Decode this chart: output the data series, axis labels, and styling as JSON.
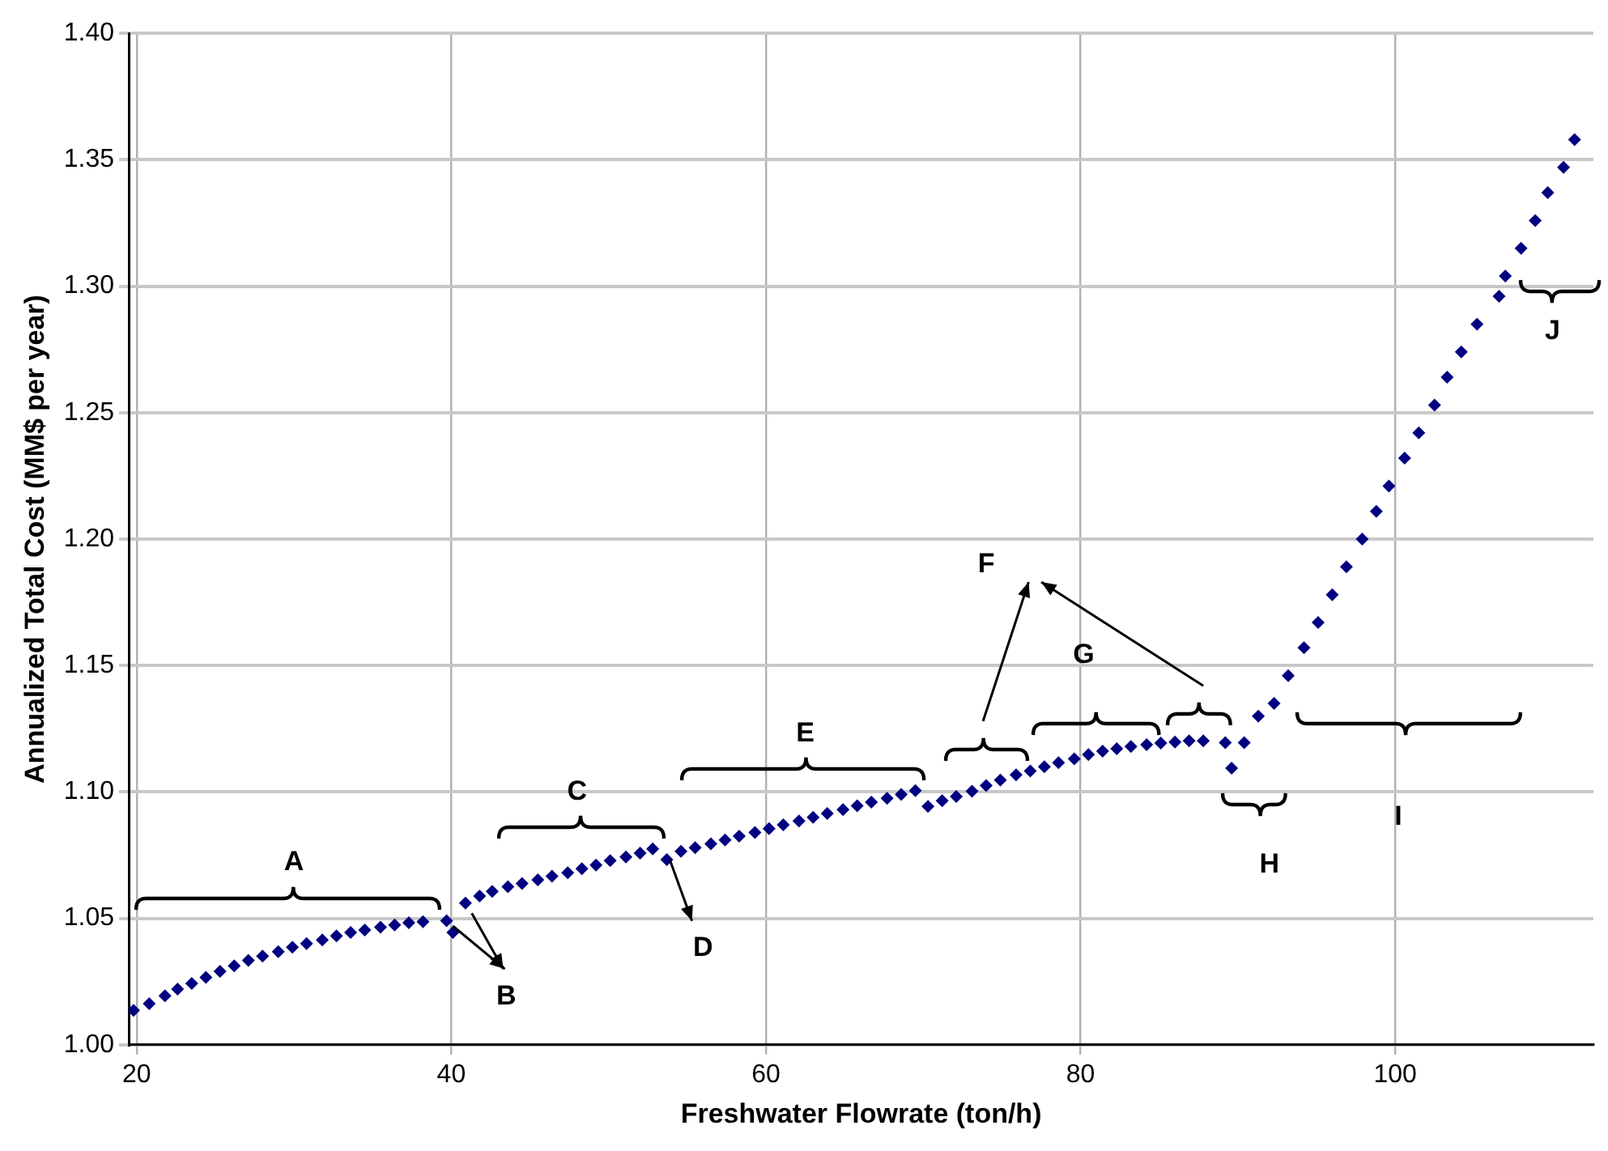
{
  "chart_data": {
    "type": "scatter",
    "xlabel": "Freshwater Flowrate (ton/h)",
    "ylabel": "Annualized Total Cost (MM$ per year)",
    "x": [
      19.8,
      20.8,
      21.8,
      22.6,
      23.5,
      24.4,
      25.3,
      26.2,
      27.1,
      28.0,
      29.0,
      29.9,
      30.8,
      31.8,
      32.7,
      33.6,
      34.5,
      35.5,
      36.4,
      37.3,
      38.2,
      39.7,
      40.1,
      40.9,
      41.8,
      42.6,
      43.6,
      44.5,
      45.5,
      46.4,
      47.4,
      48.3,
      49.2,
      50.1,
      51.1,
      52.0,
      52.8,
      53.7,
      54.6,
      55.5,
      56.5,
      57.4,
      58.3,
      59.3,
      60.2,
      61.1,
      62.1,
      63.0,
      63.9,
      64.9,
      65.8,
      66.7,
      67.7,
      68.6,
      69.5,
      70.3,
      71.2,
      72.1,
      73.1,
      74.0,
      74.9,
      75.9,
      76.8,
      77.7,
      78.6,
      79.6,
      80.5,
      81.4,
      82.3,
      83.2,
      84.2,
      85.1,
      86.0,
      86.9,
      87.8,
      89.2,
      89.6,
      90.4,
      91.3,
      92.3,
      93.2,
      94.2,
      95.1,
      96.0,
      96.9,
      97.9,
      98.8,
      99.6,
      100.6,
      101.5,
      102.5,
      103.3,
      104.2,
      105.2,
      106.6,
      107.0,
      108.0,
      108.9,
      109.7,
      110.7,
      111.4
    ],
    "values": [
      1.0136,
      1.0163,
      1.0194,
      1.022,
      1.0243,
      1.0267,
      1.0291,
      1.0312,
      1.0334,
      1.0351,
      1.0368,
      1.0386,
      1.04,
      1.0415,
      1.0431,
      1.0444,
      1.0454,
      1.0465,
      1.0474,
      1.0483,
      1.0487,
      1.0491,
      1.0444,
      1.056,
      1.0588,
      1.0607,
      1.0625,
      1.0638,
      1.0652,
      1.0667,
      1.068,
      1.0696,
      1.0711,
      1.0728,
      1.0743,
      1.0758,
      1.0775,
      1.0732,
      1.0765,
      1.078,
      1.0795,
      1.081,
      1.0825,
      1.084,
      1.0855,
      1.087,
      1.0885,
      1.09,
      1.0915,
      1.093,
      1.0945,
      1.096,
      1.0975,
      1.099,
      1.1005,
      1.0943,
      1.0965,
      1.0982,
      1.1003,
      1.1025,
      1.1047,
      1.1068,
      1.1083,
      1.11,
      1.1116,
      1.1131,
      1.1148,
      1.1161,
      1.1171,
      1.118,
      1.1187,
      1.1193,
      1.1197,
      1.1202,
      1.1202,
      1.1195,
      1.1094,
      1.1195,
      1.13,
      1.135,
      1.146,
      1.157,
      1.167,
      1.178,
      1.189,
      1.2,
      1.211,
      1.221,
      1.232,
      1.242,
      1.253,
      1.264,
      1.274,
      1.285,
      1.296,
      1.304,
      1.315,
      1.326,
      1.337,
      1.347,
      1.358
    ],
    "color": "#000080",
    "marker": "diamond",
    "grid": true,
    "legend": false,
    "xlim": [
      19.5,
      112.6
    ],
    "xticks": [
      20,
      40,
      60,
      80,
      100
    ],
    "ylim": [
      1.0,
      1.4
    ],
    "yticks": [
      {
        "value": 1.0,
        "label": "1.00"
      },
      1.05,
      {
        "value": 1.1,
        "label": "1.10"
      },
      1.15,
      {
        "value": 1.2,
        "label": "1.20"
      },
      1.25,
      {
        "value": 1.3,
        "label": "1.30"
      },
      1.35,
      {
        "value": 1.4,
        "label": "1.40"
      }
    ],
    "annotations": [
      "A",
      "B",
      "C",
      "D",
      "E",
      "F",
      "G",
      "H",
      "I",
      "J"
    ]
  }
}
